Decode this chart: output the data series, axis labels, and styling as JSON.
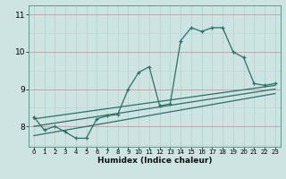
{
  "xlabel": "Humidex (Indice chaleur)",
  "ylabel": "",
  "bg_color": "#cde4e2",
  "grid_color_v": "#b5d4d0",
  "grid_color_h_main": "#b5d4d0",
  "grid_color_h_red": "#cc9999",
  "line_color": "#2a7068",
  "xlim": [
    -0.5,
    23.5
  ],
  "ylim": [
    7.45,
    11.25
  ],
  "yticks": [
    8,
    9,
    10,
    11
  ],
  "xticks": [
    0,
    1,
    2,
    3,
    4,
    5,
    6,
    7,
    8,
    9,
    10,
    11,
    12,
    13,
    14,
    15,
    16,
    17,
    18,
    19,
    20,
    21,
    22,
    23
  ],
  "xtick_labels": [
    "0",
    "1",
    "2",
    "3",
    "4",
    "5",
    "6",
    "7",
    "8",
    "9",
    "10",
    "11",
    "12",
    "13",
    "14",
    "15",
    "16",
    "17",
    "18",
    "19",
    "20",
    "21",
    "22",
    "23"
  ],
  "series1_x": [
    0,
    1,
    2,
    3,
    4,
    5,
    6,
    7,
    8,
    9,
    10,
    11,
    12,
    13,
    14,
    15,
    16,
    17,
    18,
    19,
    20,
    21,
    22,
    23
  ],
  "series1_y": [
    8.25,
    7.9,
    8.0,
    7.85,
    7.68,
    7.68,
    8.2,
    8.28,
    8.32,
    9.0,
    9.45,
    9.6,
    8.55,
    8.6,
    10.3,
    10.65,
    10.55,
    10.65,
    10.65,
    10.0,
    9.85,
    9.15,
    9.1,
    9.15
  ],
  "series2_x": [
    0,
    23
  ],
  "series2_y": [
    8.2,
    9.1
  ],
  "series3_x": [
    0,
    23
  ],
  "series3_y": [
    8.0,
    9.0
  ],
  "series4_x": [
    0,
    23
  ],
  "series4_y": [
    7.75,
    8.88
  ]
}
